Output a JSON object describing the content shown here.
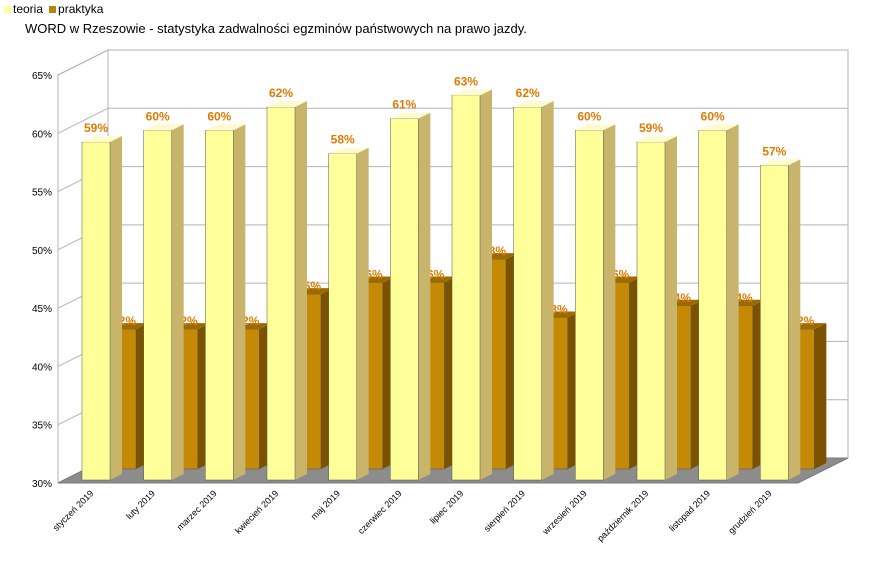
{
  "legend": [
    {
      "label": "teoria",
      "color": "#ffff99"
    },
    {
      "label": "praktyka",
      "color": "#b8860b"
    }
  ],
  "chart_data": {
    "type": "bar",
    "title": "WORD w Rzeszowie - statystyka zadwalności egzminów państwowych na prawo jazdy.",
    "categories": [
      "styczeń 2019",
      "luty 2019",
      "marzec 2019",
      "kwiecień 2019",
      "maj 2019",
      "czerwiec 2019",
      "lipiec 2019",
      "sierpień 2019",
      "wrzesień 2019",
      "październik 2019",
      "listopad 2019",
      "grudzień 2019"
    ],
    "series": [
      {
        "name": "teoria",
        "values": [
          59,
          60,
          60,
          62,
          58,
          61,
          63,
          62,
          60,
          59,
          60,
          57
        ],
        "labels": [
          "59%",
          "60%",
          "60%",
          "62%",
          "58%",
          "61%",
          "63%",
          "62%",
          "60%",
          "59%",
          "60%",
          "57%"
        ]
      },
      {
        "name": "praktyka",
        "values": [
          42,
          42,
          42,
          45,
          46,
          46,
          48,
          43,
          46,
          44,
          44,
          42
        ],
        "labels": [
          "42%",
          "42%",
          "42%",
          "45%",
          "46%",
          "46%",
          "48%",
          "43%",
          "46%",
          "44%",
          "44%",
          "42%"
        ]
      }
    ],
    "ylim": [
      30,
      65
    ],
    "yticks": [
      30,
      35,
      40,
      45,
      50,
      55,
      60,
      65
    ],
    "ytick_labels": [
      "30%",
      "35%",
      "40%",
      "45%",
      "50%",
      "55%",
      "60%",
      "65%"
    ],
    "grid": true,
    "legend_position": "top-left",
    "label_color": "#e07b00",
    "colors": {
      "teoria_front": "#ffff99",
      "teoria_side": "#c8b46a",
      "teoria_top": "#fffbd0",
      "praktyka_front": "#c58a05",
      "praktyka_side": "#7a5200",
      "praktyka_top": "#9c6b00"
    }
  }
}
